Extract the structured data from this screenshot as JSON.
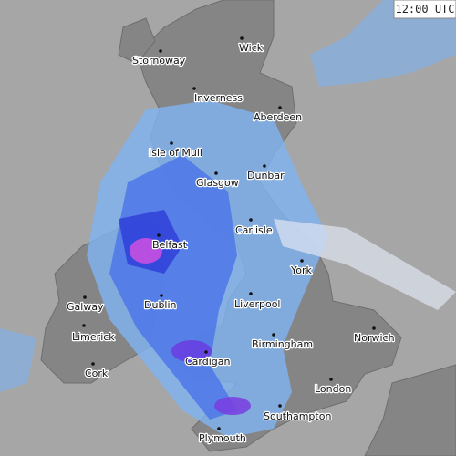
{
  "timestamp": "12:00 UTC",
  "cities": [
    "Stornoway",
    "Wick",
    "Inverness",
    "Aberdeen",
    "Isle of Mull",
    "Dunbar",
    "Glasgow",
    "Belfast",
    "Carlisle",
    "York",
    "Galway",
    "Dublin",
    "Liverpool",
    "Limerick",
    "Norwich",
    "Birmingham",
    "Cardigan",
    "Cork",
    "London",
    "Southampton",
    "Plymouth"
  ]
}
